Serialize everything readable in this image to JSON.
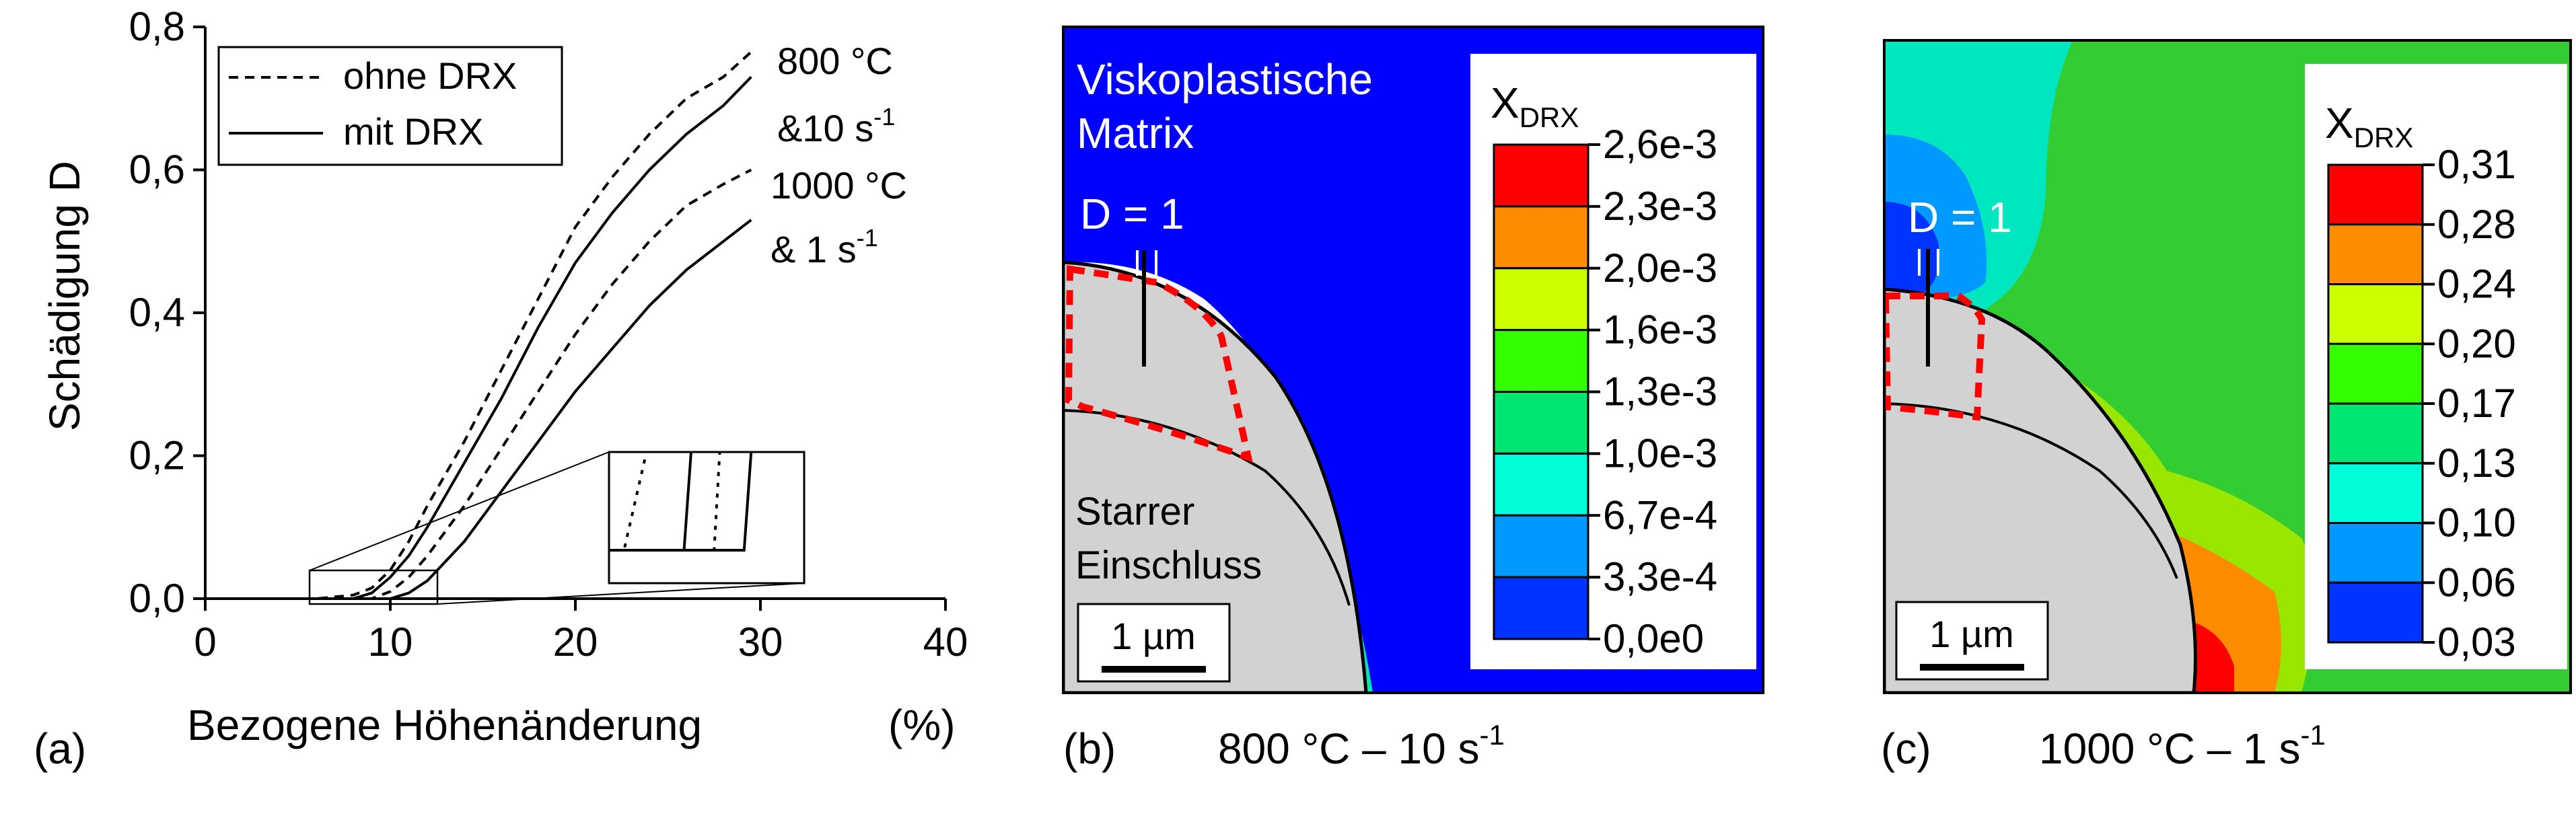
{
  "chart_data": [
    {
      "type": "line",
      "panel_label": "(a)",
      "xlabel": "Bezogene Höhenänderung",
      "xlabel_unit": "(%)",
      "ylabel": "Schädigung D",
      "xlim": [
        0,
        40
      ],
      "ylim": [
        0,
        0.8
      ],
      "xticks": [
        "0",
        "10",
        "20",
        "30",
        "40"
      ],
      "yticks": [
        "0,0",
        "0,2",
        "0,4",
        "0,6",
        "0,8"
      ],
      "grid": false,
      "legend_position": "top-left",
      "legend": [
        {
          "label": "ohne DRX",
          "style": "dashed"
        },
        {
          "label": "mit DRX",
          "style": "solid"
        }
      ],
      "curve_labels": [
        {
          "line1": "800 °C",
          "line2_prefix": "&10 s",
          "line2_sup": "-1"
        },
        {
          "line1": "1000 °C",
          "line2_prefix": "& 1 s",
          "line2_sup": "-1"
        }
      ],
      "series": [
        {
          "legend": "ohne DRX",
          "group": "800 °C &10 s-1",
          "style": "dashed",
          "x": [
            0,
            6,
            8,
            9,
            10,
            11,
            12,
            14,
            16,
            18,
            20,
            22,
            24,
            26,
            28,
            29.5
          ],
          "y": [
            0,
            0,
            0.005,
            0.015,
            0.04,
            0.08,
            0.13,
            0.22,
            0.32,
            0.42,
            0.52,
            0.59,
            0.65,
            0.7,
            0.73,
            0.765
          ]
        },
        {
          "legend": "mit DRX",
          "group": "800 °C &10 s-1",
          "style": "solid",
          "x": [
            0,
            8,
            9,
            10,
            11,
            12,
            14,
            16,
            18,
            20,
            22,
            24,
            26,
            28,
            29.5
          ],
          "y": [
            0,
            0,
            0.008,
            0.03,
            0.06,
            0.1,
            0.19,
            0.28,
            0.38,
            0.47,
            0.54,
            0.6,
            0.65,
            0.69,
            0.73
          ]
        },
        {
          "legend": "ohne DRX",
          "group": "1000 °C & 1 s-1",
          "style": "dashed",
          "x": [
            0,
            9,
            10,
            11,
            12,
            14,
            16,
            18,
            20,
            22,
            24,
            26,
            28,
            29.5
          ],
          "y": [
            0,
            0,
            0.01,
            0.03,
            0.06,
            0.13,
            0.21,
            0.29,
            0.37,
            0.44,
            0.5,
            0.55,
            0.58,
            0.6
          ]
        },
        {
          "legend": "mit DRX",
          "group": "1000 °C & 1 s-1",
          "style": "solid",
          "x": [
            0,
            10,
            11,
            12,
            14,
            16,
            18,
            20,
            22,
            24,
            26,
            28,
            29.5
          ],
          "y": [
            0,
            0,
            0.008,
            0.025,
            0.08,
            0.15,
            0.22,
            0.29,
            0.35,
            0.41,
            0.46,
            0.5,
            0.53
          ]
        }
      ]
    },
    {
      "type": "heatmap",
      "panel_label": "(b)",
      "caption_prefix": "800 °C – 10 s",
      "caption_sup": "-1",
      "colorbar_title": "X",
      "colorbar_sub": "DRX",
      "levels": [
        "2,6e-3",
        "2,3e-3",
        "2,0e-3",
        "1,6e-3",
        "1,3e-3",
        "1,0e-3",
        "6,7e-4",
        "3,3e-4",
        "0,0e0"
      ],
      "level_colors": [
        "#ff0000",
        "#ff8c00",
        "#ccff00",
        "#33ff00",
        "#00e673",
        "#00ffd9",
        "#0099ff",
        "#0033ff",
        "#0000ff"
      ],
      "annotations": {
        "matrix_line1": "Viskoplastische",
        "matrix_line2": "Matrix",
        "damage": "D = 1",
        "inclusion_line1": "Starrer",
        "inclusion_line2": "Einschluss",
        "scale": "1 µm"
      }
    },
    {
      "type": "heatmap",
      "panel_label": "(c)",
      "caption_prefix": "1000 °C – 1 s",
      "caption_sup": "-1",
      "colorbar_title": "X",
      "colorbar_sub": "DRX",
      "levels": [
        "0,31",
        "0,28",
        "0,24",
        "0,20",
        "0,17",
        "0,13",
        "0,10",
        "0,06",
        "0,03"
      ],
      "level_colors": [
        "#ff0000",
        "#ff8c00",
        "#ccff00",
        "#33ff00",
        "#00e673",
        "#00ffd9",
        "#0099ff",
        "#0033ff",
        "#0000ff"
      ],
      "annotations": {
        "damage": "D = 1",
        "scale": "1 µm"
      }
    }
  ],
  "colors": {
    "matrix_blue": "#0000ff",
    "field_green": "#33cc33",
    "inclusion_grey": "#d2d2d2",
    "damage_outline": "#ff0000",
    "axis": "#000000"
  }
}
